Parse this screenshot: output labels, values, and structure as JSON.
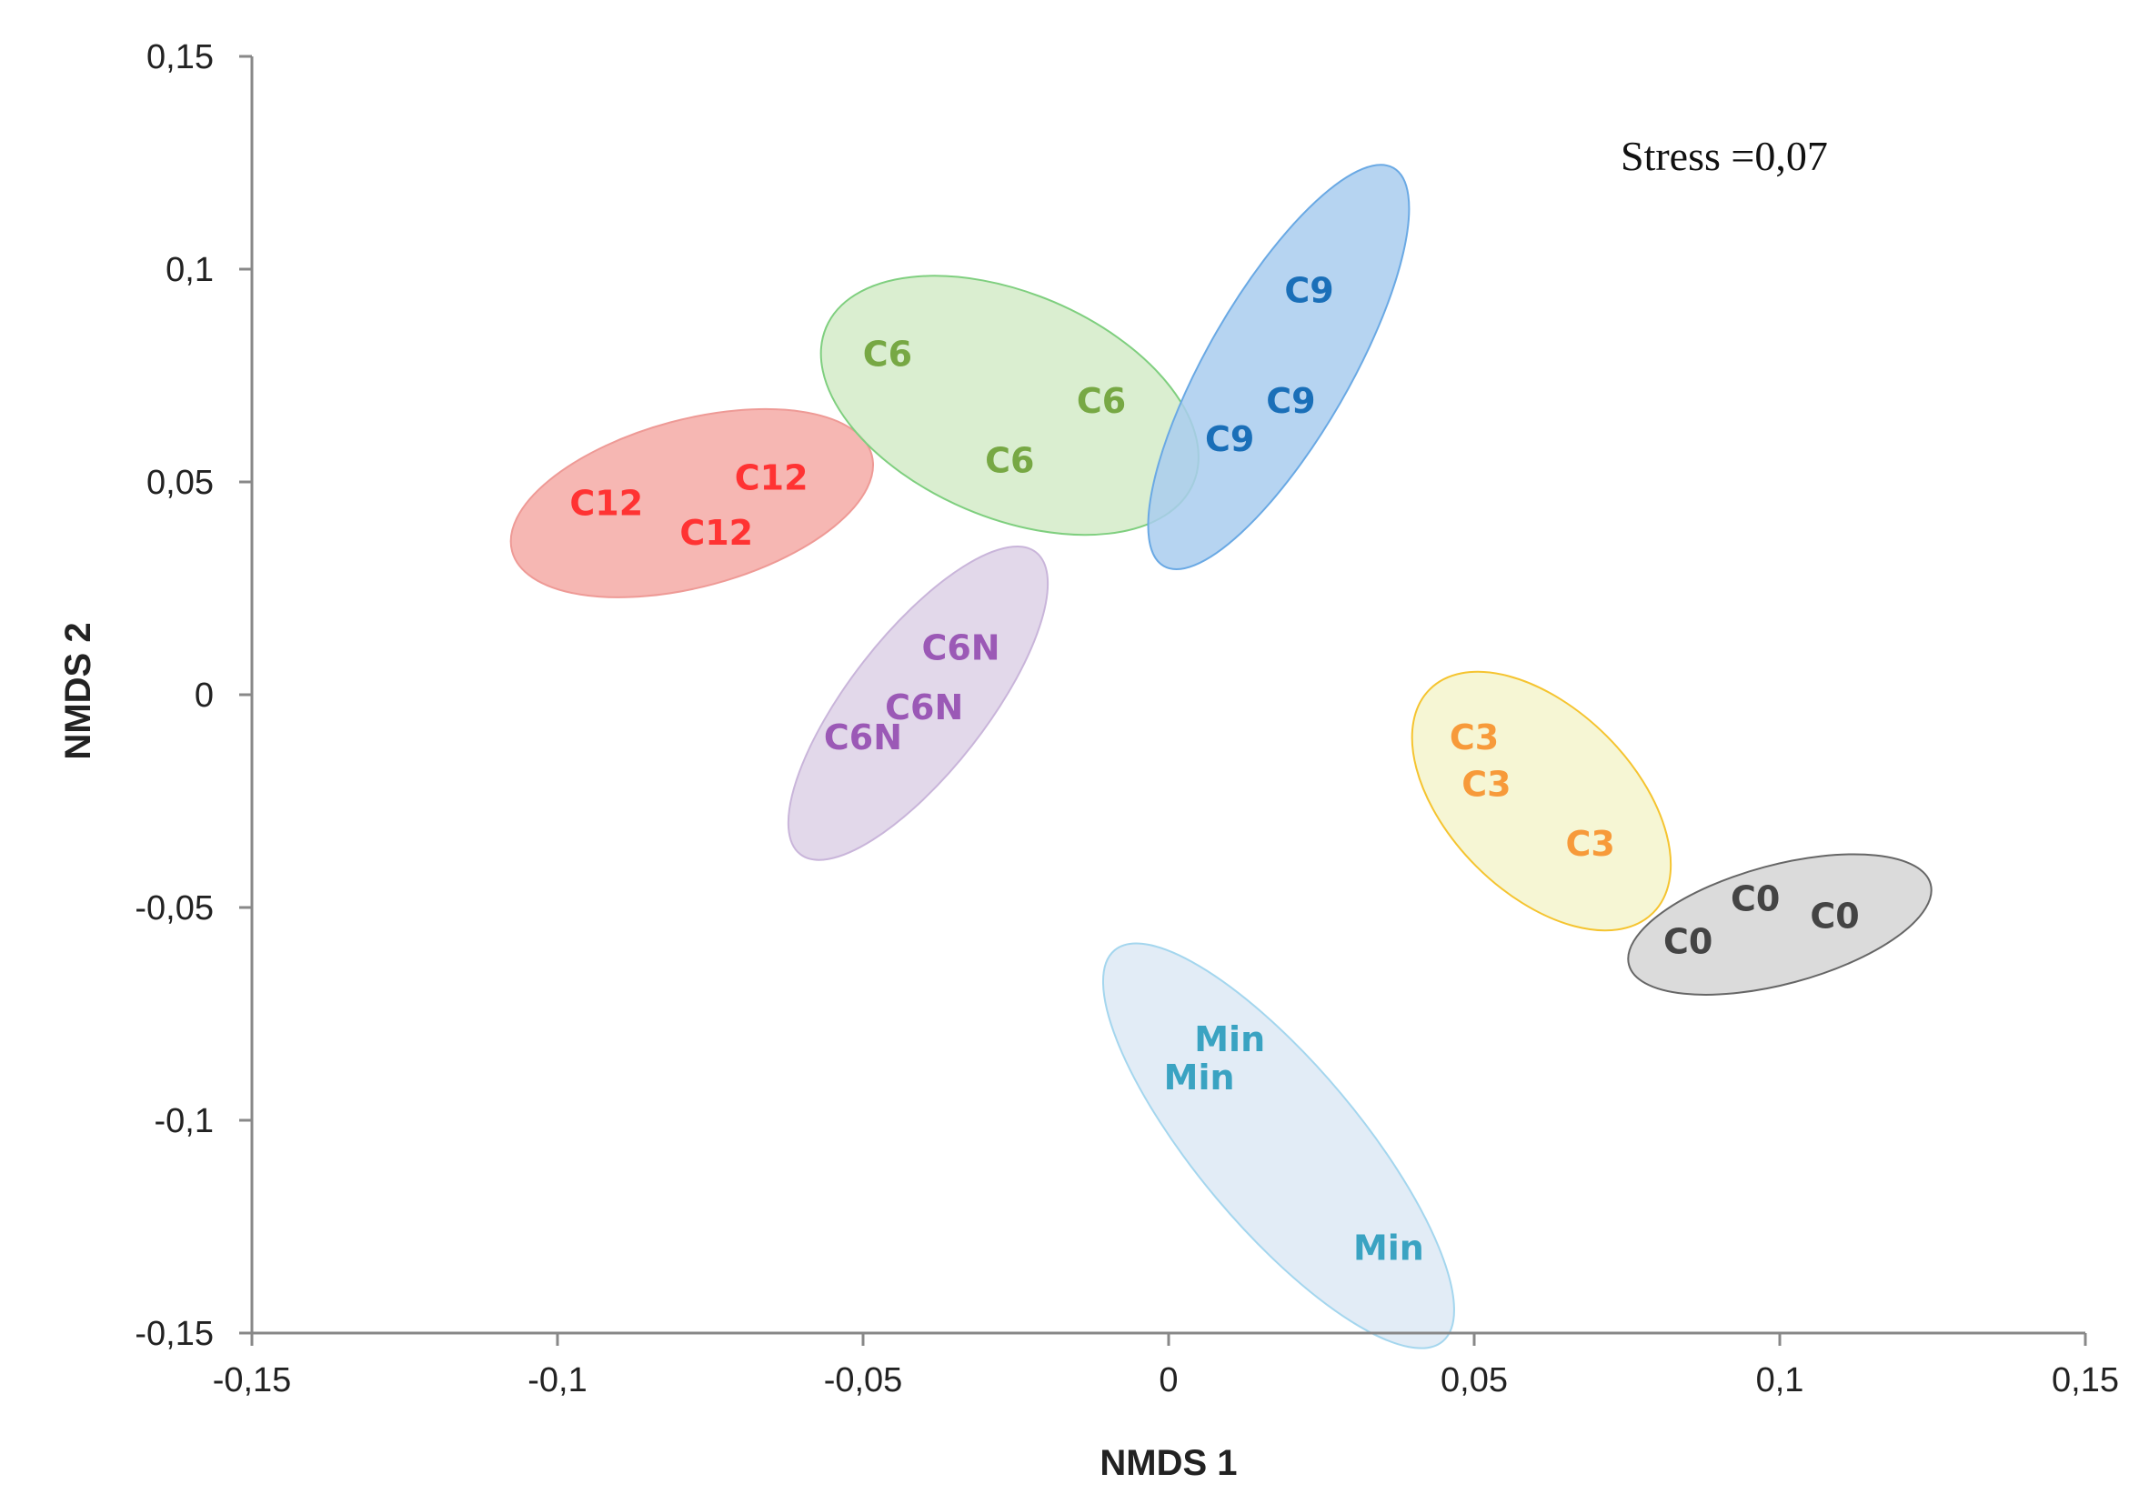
{
  "chart_data": {
    "type": "scatter",
    "title": "",
    "xlabel": "NMDS 1",
    "ylabel": "NMDS 2",
    "xlim": [
      -0.15,
      0.15
    ],
    "ylim": [
      -0.15,
      0.15
    ],
    "x_ticks": [
      -0.15,
      -0.1,
      -0.05,
      0,
      0.05,
      0.1,
      0.15
    ],
    "y_ticks": [
      -0.15,
      -0.1,
      -0.05,
      0,
      0.05,
      0.1,
      0.15
    ],
    "x_tick_labels": [
      "-0,15",
      "-0,1",
      "-0,05",
      "0",
      "0,05",
      "0,1",
      "0,15"
    ],
    "y_tick_labels": [
      "-0,15",
      "-0,1",
      "-0,05",
      "0",
      "0,05",
      "0,1",
      "0,15"
    ],
    "grid": false,
    "annotation": "Stress =0,07",
    "groups": [
      {
        "name": "C12",
        "color": "#ff3333",
        "fill": "#f4aaa6",
        "stroke": "#ee9a96",
        "points": [
          [
            -0.092,
            0.045
          ],
          [
            -0.065,
            0.051
          ],
          [
            -0.074,
            0.038
          ]
        ],
        "ellipse": {
          "cx": -0.078,
          "cy": 0.045,
          "rx": 0.031,
          "ry": 0.019,
          "angle": 15
        }
      },
      {
        "name": "C6",
        "color": "#77a844",
        "fill": "#d3ebc8",
        "stroke": "#7fcf7f",
        "points": [
          [
            -0.046,
            0.08
          ],
          [
            -0.011,
            0.069
          ],
          [
            -0.026,
            0.055
          ]
        ],
        "ellipse": {
          "cx": -0.026,
          "cy": 0.068,
          "rx": 0.034,
          "ry": 0.0245,
          "angle": -23
        }
      },
      {
        "name": "C9",
        "color": "#1a6fb8",
        "fill": "#a9cdee",
        "stroke": "#6aa9e4",
        "points": [
          [
            0.023,
            0.095
          ],
          [
            0.02,
            0.069
          ],
          [
            0.01,
            0.06
          ]
        ],
        "ellipse": {
          "cx": 0.018,
          "cy": 0.077,
          "rx": 0.048,
          "ry": 0.0125,
          "angle": 60
        }
      },
      {
        "name": "C6N",
        "color": "#9b59b6",
        "fill": "#ddd1e6",
        "stroke": "#c9b5da",
        "points": [
          [
            -0.034,
            0.011
          ],
          [
            -0.04,
            -0.003
          ],
          [
            -0.05,
            -0.01
          ]
        ],
        "ellipse": {
          "cx": -0.041,
          "cy": -0.002,
          "rx": 0.038,
          "ry": 0.0125,
          "angle": 52
        }
      },
      {
        "name": "C3",
        "color": "#f79a3a",
        "fill": "#f5f4cc",
        "stroke": "#f5c430",
        "points": [
          [
            0.05,
            -0.01
          ],
          [
            0.052,
            -0.021
          ],
          [
            0.069,
            -0.035
          ]
        ],
        "ellipse": {
          "cx": 0.061,
          "cy": -0.025,
          "rx": 0.03,
          "ry": 0.0175,
          "angle": -45
        }
      },
      {
        "name": "C0",
        "color": "#444444",
        "fill": "#d5d5d5",
        "stroke": "#666666",
        "points": [
          [
            0.096,
            -0.048
          ],
          [
            0.109,
            -0.052
          ],
          [
            0.085,
            -0.058
          ]
        ],
        "ellipse": {
          "cx": 0.1,
          "cy": -0.054,
          "rx": 0.026,
          "ry": 0.0135,
          "angle": 15
        }
      },
      {
        "name": "Min",
        "color": "#3aa3c2",
        "fill": "#dde9f5",
        "stroke": "#a4d6ee",
        "points": [
          [
            0.01,
            -0.081
          ],
          [
            0.005,
            -0.09
          ],
          [
            0.036,
            -0.13
          ]
        ],
        "ellipse": {
          "cx": 0.018,
          "cy": -0.106,
          "rx": 0.05,
          "ry": 0.015,
          "angle": -50
        }
      }
    ]
  }
}
